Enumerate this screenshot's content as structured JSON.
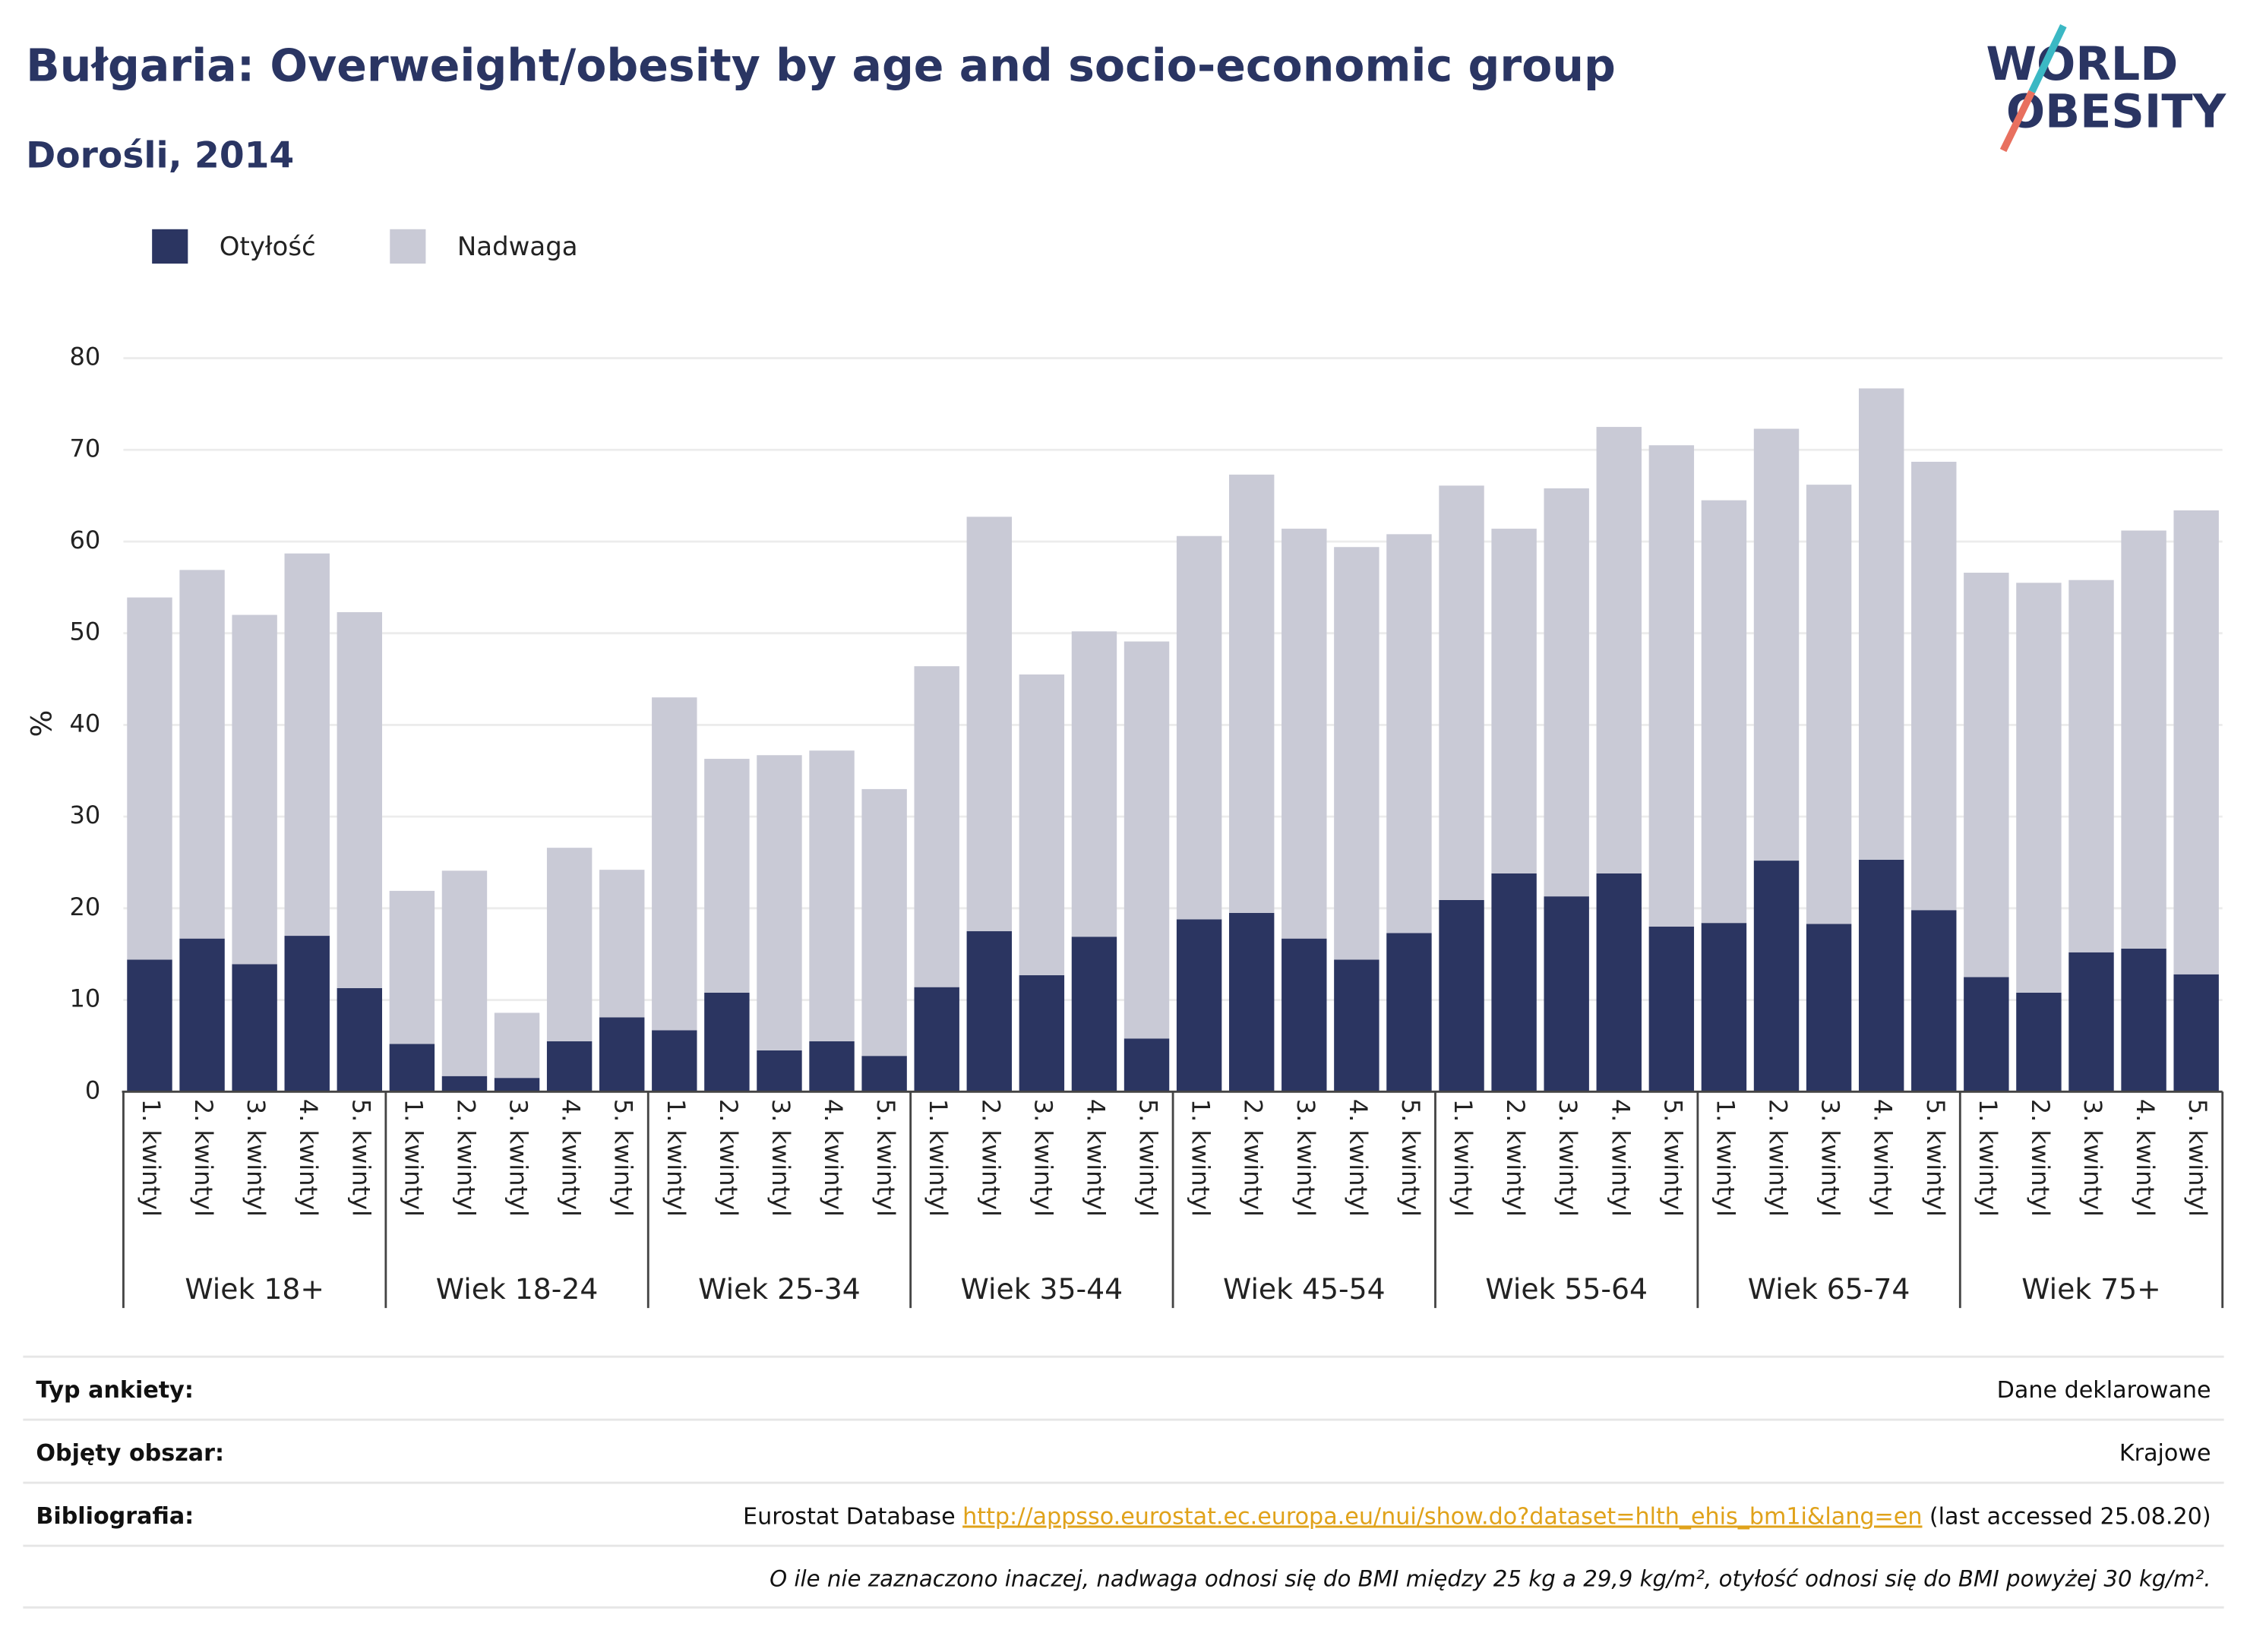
{
  "chart_data": {
    "type": "stacked_bar",
    "title": "Bułgaria: Overweight/obesity by age and socio-economic group",
    "subtitle": "Dorośli, 2014",
    "logo": [
      "WORLD",
      "OBESITY"
    ],
    "y_label": "%",
    "legend_position": "top-left",
    "grid": true,
    "ylim": [
      0,
      80
    ],
    "yticks": [
      0,
      10,
      20,
      30,
      40,
      50,
      60,
      70,
      80
    ],
    "groups": [
      "Wiek 18+",
      "Wiek 18-24",
      "Wiek 25-34",
      "Wiek 35-44",
      "Wiek 45-54",
      "Wiek 55-64",
      "Wiek 65-74",
      "Wiek 75+"
    ],
    "categories": [
      "1. kwintyl",
      "2. kwintyl",
      "3. kwintyl",
      "4. kwintyl",
      "5. kwintyl",
      "1. kwintyl",
      "2. kwintyl",
      "3. kwintyl",
      "4. kwintyl",
      "5. kwintyl",
      "1. kwintyl",
      "2. kwintyl",
      "3. kwintyl",
      "4. kwintyl",
      "5. kwintyl",
      "1. kwintyl",
      "2. kwintyl",
      "3. kwintyl",
      "4. kwintyl",
      "5. kwintyl",
      "1. kwintyl",
      "2. kwintyl",
      "3. kwintyl",
      "4. kwintyl",
      "5. kwintyl",
      "1. kwintyl",
      "2. kwintyl",
      "3. kwintyl",
      "4. kwintyl",
      "5. kwintyl",
      "1. kwintyl",
      "2. kwintyl",
      "3. kwintyl",
      "4. kwintyl",
      "5. kwintyl",
      "1. kwintyl",
      "2. kwintyl",
      "3. kwintyl",
      "4. kwintyl",
      "5. kwintyl"
    ],
    "series": [
      {
        "name": "Otyłość",
        "color": "#2b3561",
        "values": [
          14.4,
          16.7,
          13.9,
          17.0,
          11.3,
          5.2,
          1.7,
          1.5,
          5.5,
          8.1,
          6.7,
          10.8,
          4.5,
          5.5,
          3.9,
          11.4,
          17.5,
          12.7,
          16.9,
          5.8,
          18.8,
          19.5,
          16.7,
          14.4,
          17.3,
          20.9,
          23.8,
          21.3,
          23.8,
          18.0,
          18.4,
          25.2,
          18.3,
          25.3,
          19.8,
          12.5,
          10.8,
          15.2,
          15.6,
          12.8
        ]
      },
      {
        "name": "Nadwaga",
        "color": "#c9cad6",
        "values": [
          39.5,
          40.2,
          38.1,
          41.7,
          41.0,
          16.7,
          22.4,
          7.1,
          21.1,
          16.1,
          36.3,
          25.5,
          32.2,
          31.7,
          29.1,
          35.0,
          45.2,
          32.8,
          33.3,
          43.3,
          41.8,
          47.8,
          44.7,
          45.0,
          43.5,
          45.2,
          37.6,
          44.5,
          48.7,
          52.5,
          46.1,
          47.1,
          47.9,
          51.4,
          48.9,
          44.1,
          44.7,
          40.6,
          45.6,
          50.6
        ]
      }
    ]
  },
  "footer": {
    "rows": [
      {
        "label": "Typ ankiety:",
        "value": "Dane deklarowane"
      },
      {
        "label": "Objęty obszar:",
        "value": "Krajowe"
      },
      {
        "label": "Bibliografia:",
        "value_parts": [
          "Eurostat Database",
          "http://appsso.eurostat.ec.europa.eu/nui/show.do?dataset=hlth_ehis_bm1i&lang=en",
          "(last accessed 25.08.20)"
        ]
      }
    ],
    "note": "O ile nie zaznaczono inaczej, nadwaga odnosi się do BMI między 25 kg a 29,9 kg/m², otyłość odnosi się do BMI powyżej 30 kg/m²."
  }
}
